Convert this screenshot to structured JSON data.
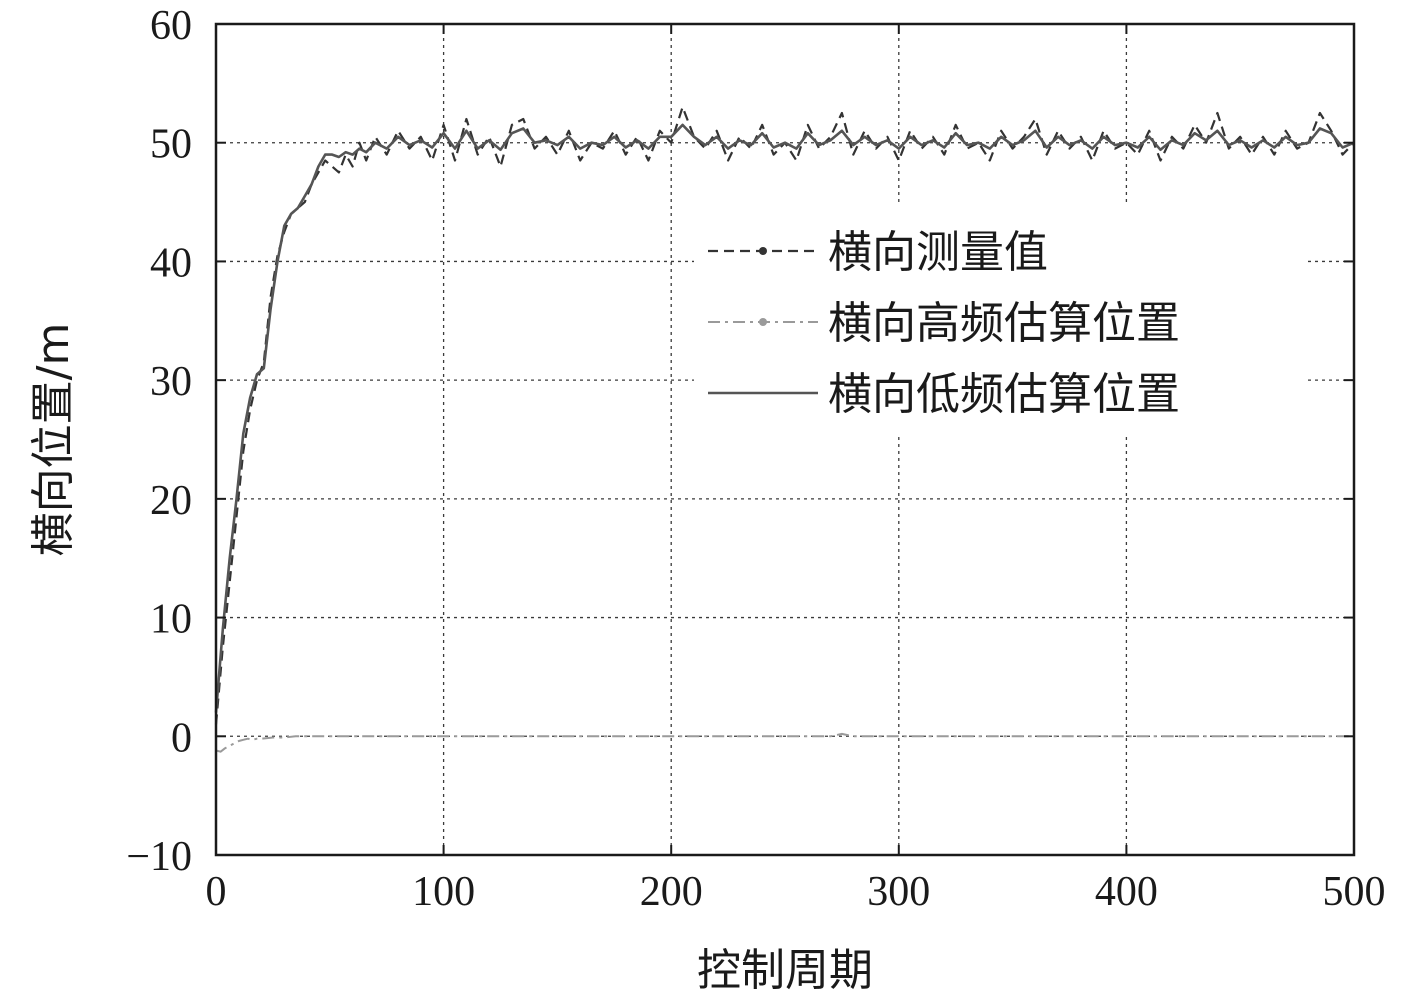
{
  "chart_data": {
    "type": "line",
    "title": "",
    "xlabel": "控制周期",
    "ylabel": "横向位置/m",
    "xlim": [
      0,
      500
    ],
    "ylim": [
      -10,
      60
    ],
    "xticks": [
      0,
      100,
      200,
      300,
      400,
      500
    ],
    "yticks": [
      -10,
      0,
      10,
      20,
      30,
      40,
      50,
      60
    ],
    "xtick_labels": [
      "0",
      "100",
      "200",
      "300",
      "400",
      "500"
    ],
    "ytick_labels": [
      "−10",
      "0",
      "10",
      "20",
      "30",
      "40",
      "50",
      "60"
    ],
    "grid": true,
    "legend_position": "center-right",
    "series": [
      {
        "name": "横向测量值",
        "style": "dashed",
        "color": "#333333",
        "x": [
          0,
          3,
          6,
          9,
          12,
          15,
          18,
          21,
          24,
          27,
          30,
          33,
          36,
          39,
          42,
          45,
          48,
          51,
          54,
          57,
          60,
          63,
          66,
          70,
          75,
          80,
          85,
          90,
          95,
          100,
          105,
          110,
          115,
          120,
          125,
          130,
          135,
          140,
          145,
          150,
          155,
          160,
          165,
          170,
          175,
          180,
          185,
          190,
          195,
          200,
          205,
          210,
          215,
          220,
          225,
          230,
          235,
          240,
          245,
          250,
          255,
          260,
          265,
          270,
          275,
          280,
          285,
          290,
          295,
          300,
          305,
          310,
          315,
          320,
          325,
          330,
          335,
          340,
          345,
          350,
          355,
          360,
          365,
          370,
          375,
          380,
          385,
          390,
          395,
          400,
          405,
          410,
          415,
          420,
          425,
          430,
          435,
          440,
          445,
          450,
          455,
          460,
          465,
          470,
          475,
          480,
          485,
          490,
          495,
          500
        ],
        "y": [
          1.0,
          7.5,
          13.0,
          18.5,
          24.0,
          27.5,
          30.0,
          31.5,
          37.0,
          40.5,
          42.5,
          44.0,
          44.5,
          45.0,
          46.5,
          47.5,
          48.5,
          48.0,
          47.5,
          49.0,
          48.0,
          50.0,
          48.5,
          50.5,
          49.0,
          51.0,
          49.5,
          50.5,
          48.5,
          51.5,
          48.5,
          52.0,
          49.0,
          50.5,
          48.0,
          51.5,
          52.0,
          49.5,
          50.5,
          49.0,
          51.0,
          48.5,
          50.0,
          49.5,
          51.0,
          49.0,
          50.5,
          48.5,
          51.0,
          50.0,
          53.0,
          50.5,
          49.5,
          51.0,
          48.5,
          50.5,
          49.5,
          51.5,
          49.0,
          50.0,
          48.5,
          51.5,
          49.5,
          50.5,
          52.5,
          49.0,
          51.0,
          49.5,
          50.5,
          48.5,
          51.0,
          49.5,
          50.5,
          49.0,
          51.5,
          49.5,
          50.0,
          48.5,
          51.0,
          49.5,
          50.5,
          52.0,
          49.0,
          51.0,
          49.5,
          50.5,
          48.5,
          51.0,
          49.5,
          50.0,
          49.0,
          51.0,
          48.5,
          50.5,
          49.5,
          51.5,
          50.0,
          52.5,
          49.5,
          50.5,
          49.0,
          50.5,
          49.0,
          51.0,
          49.5,
          50.0,
          52.5,
          51.0,
          49.0,
          50.0
        ]
      },
      {
        "name": "横向高频估算位置",
        "style": "dashdot",
        "color": "#9a9a9a",
        "x": [
          0,
          2,
          4,
          6,
          8,
          10,
          12,
          14,
          16,
          18,
          20,
          25,
          30,
          35,
          40,
          50,
          60,
          80,
          100,
          150,
          200,
          250,
          270,
          275,
          280,
          300,
          350,
          400,
          450,
          500
        ],
        "y": [
          -1.2,
          -1.3,
          -1.0,
          -0.8,
          -0.6,
          -0.4,
          -0.3,
          -0.2,
          -0.3,
          -0.2,
          -0.2,
          -0.1,
          -0.1,
          0.0,
          0.0,
          0.0,
          0.0,
          0.0,
          0.0,
          0.0,
          0.0,
          0.0,
          0.0,
          0.2,
          0.0,
          0.0,
          0.0,
          0.0,
          0.0,
          0.0
        ]
      },
      {
        "name": "横向低频估算位置",
        "style": "solid",
        "color": "#555555",
        "x": [
          0,
          3,
          6,
          9,
          12,
          15,
          18,
          21,
          24,
          27,
          30,
          33,
          36,
          39,
          42,
          45,
          48,
          51,
          54,
          57,
          60,
          63,
          66,
          70,
          75,
          80,
          85,
          90,
          95,
          100,
          105,
          110,
          115,
          120,
          125,
          130,
          135,
          140,
          145,
          150,
          155,
          160,
          165,
          170,
          175,
          180,
          185,
          190,
          195,
          200,
          205,
          210,
          215,
          220,
          225,
          230,
          235,
          240,
          245,
          250,
          255,
          260,
          265,
          270,
          275,
          280,
          285,
          290,
          295,
          300,
          305,
          310,
          315,
          320,
          325,
          330,
          335,
          340,
          345,
          350,
          355,
          360,
          365,
          370,
          375,
          380,
          385,
          390,
          395,
          400,
          405,
          410,
          415,
          420,
          425,
          430,
          435,
          440,
          445,
          450,
          455,
          460,
          465,
          470,
          475,
          480,
          485,
          490,
          495,
          500
        ],
        "y": [
          2.0,
          9.0,
          15.0,
          20.0,
          25.5,
          28.5,
          30.5,
          31.0,
          36.0,
          40.0,
          43.0,
          44.0,
          44.5,
          45.5,
          46.5,
          48.0,
          49.0,
          49.0,
          48.8,
          49.2,
          49.0,
          49.5,
          49.2,
          50.0,
          49.5,
          50.5,
          49.8,
          50.2,
          49.6,
          50.8,
          49.5,
          51.0,
          49.5,
          50.2,
          49.4,
          50.8,
          51.2,
          50.0,
          50.2,
          49.8,
          50.5,
          49.5,
          50.0,
          49.8,
          50.5,
          49.6,
          50.2,
          49.5,
          50.5,
          50.5,
          51.5,
          50.5,
          49.8,
          50.5,
          49.5,
          50.2,
          49.8,
          50.8,
          49.6,
          50.0,
          49.5,
          50.8,
          49.8,
          50.2,
          51.0,
          49.8,
          50.5,
          49.8,
          50.2,
          49.5,
          50.5,
          49.8,
          50.2,
          49.6,
          50.8,
          49.8,
          50.0,
          49.5,
          50.5,
          49.8,
          50.2,
          51.0,
          49.6,
          50.5,
          49.8,
          50.2,
          49.5,
          50.5,
          49.8,
          50.0,
          49.6,
          50.5,
          49.4,
          50.2,
          49.8,
          50.8,
          50.2,
          51.0,
          49.8,
          50.2,
          49.6,
          50.2,
          49.6,
          50.5,
          49.8,
          50.0,
          51.2,
          50.8,
          49.6,
          50.0
        ]
      }
    ]
  }
}
